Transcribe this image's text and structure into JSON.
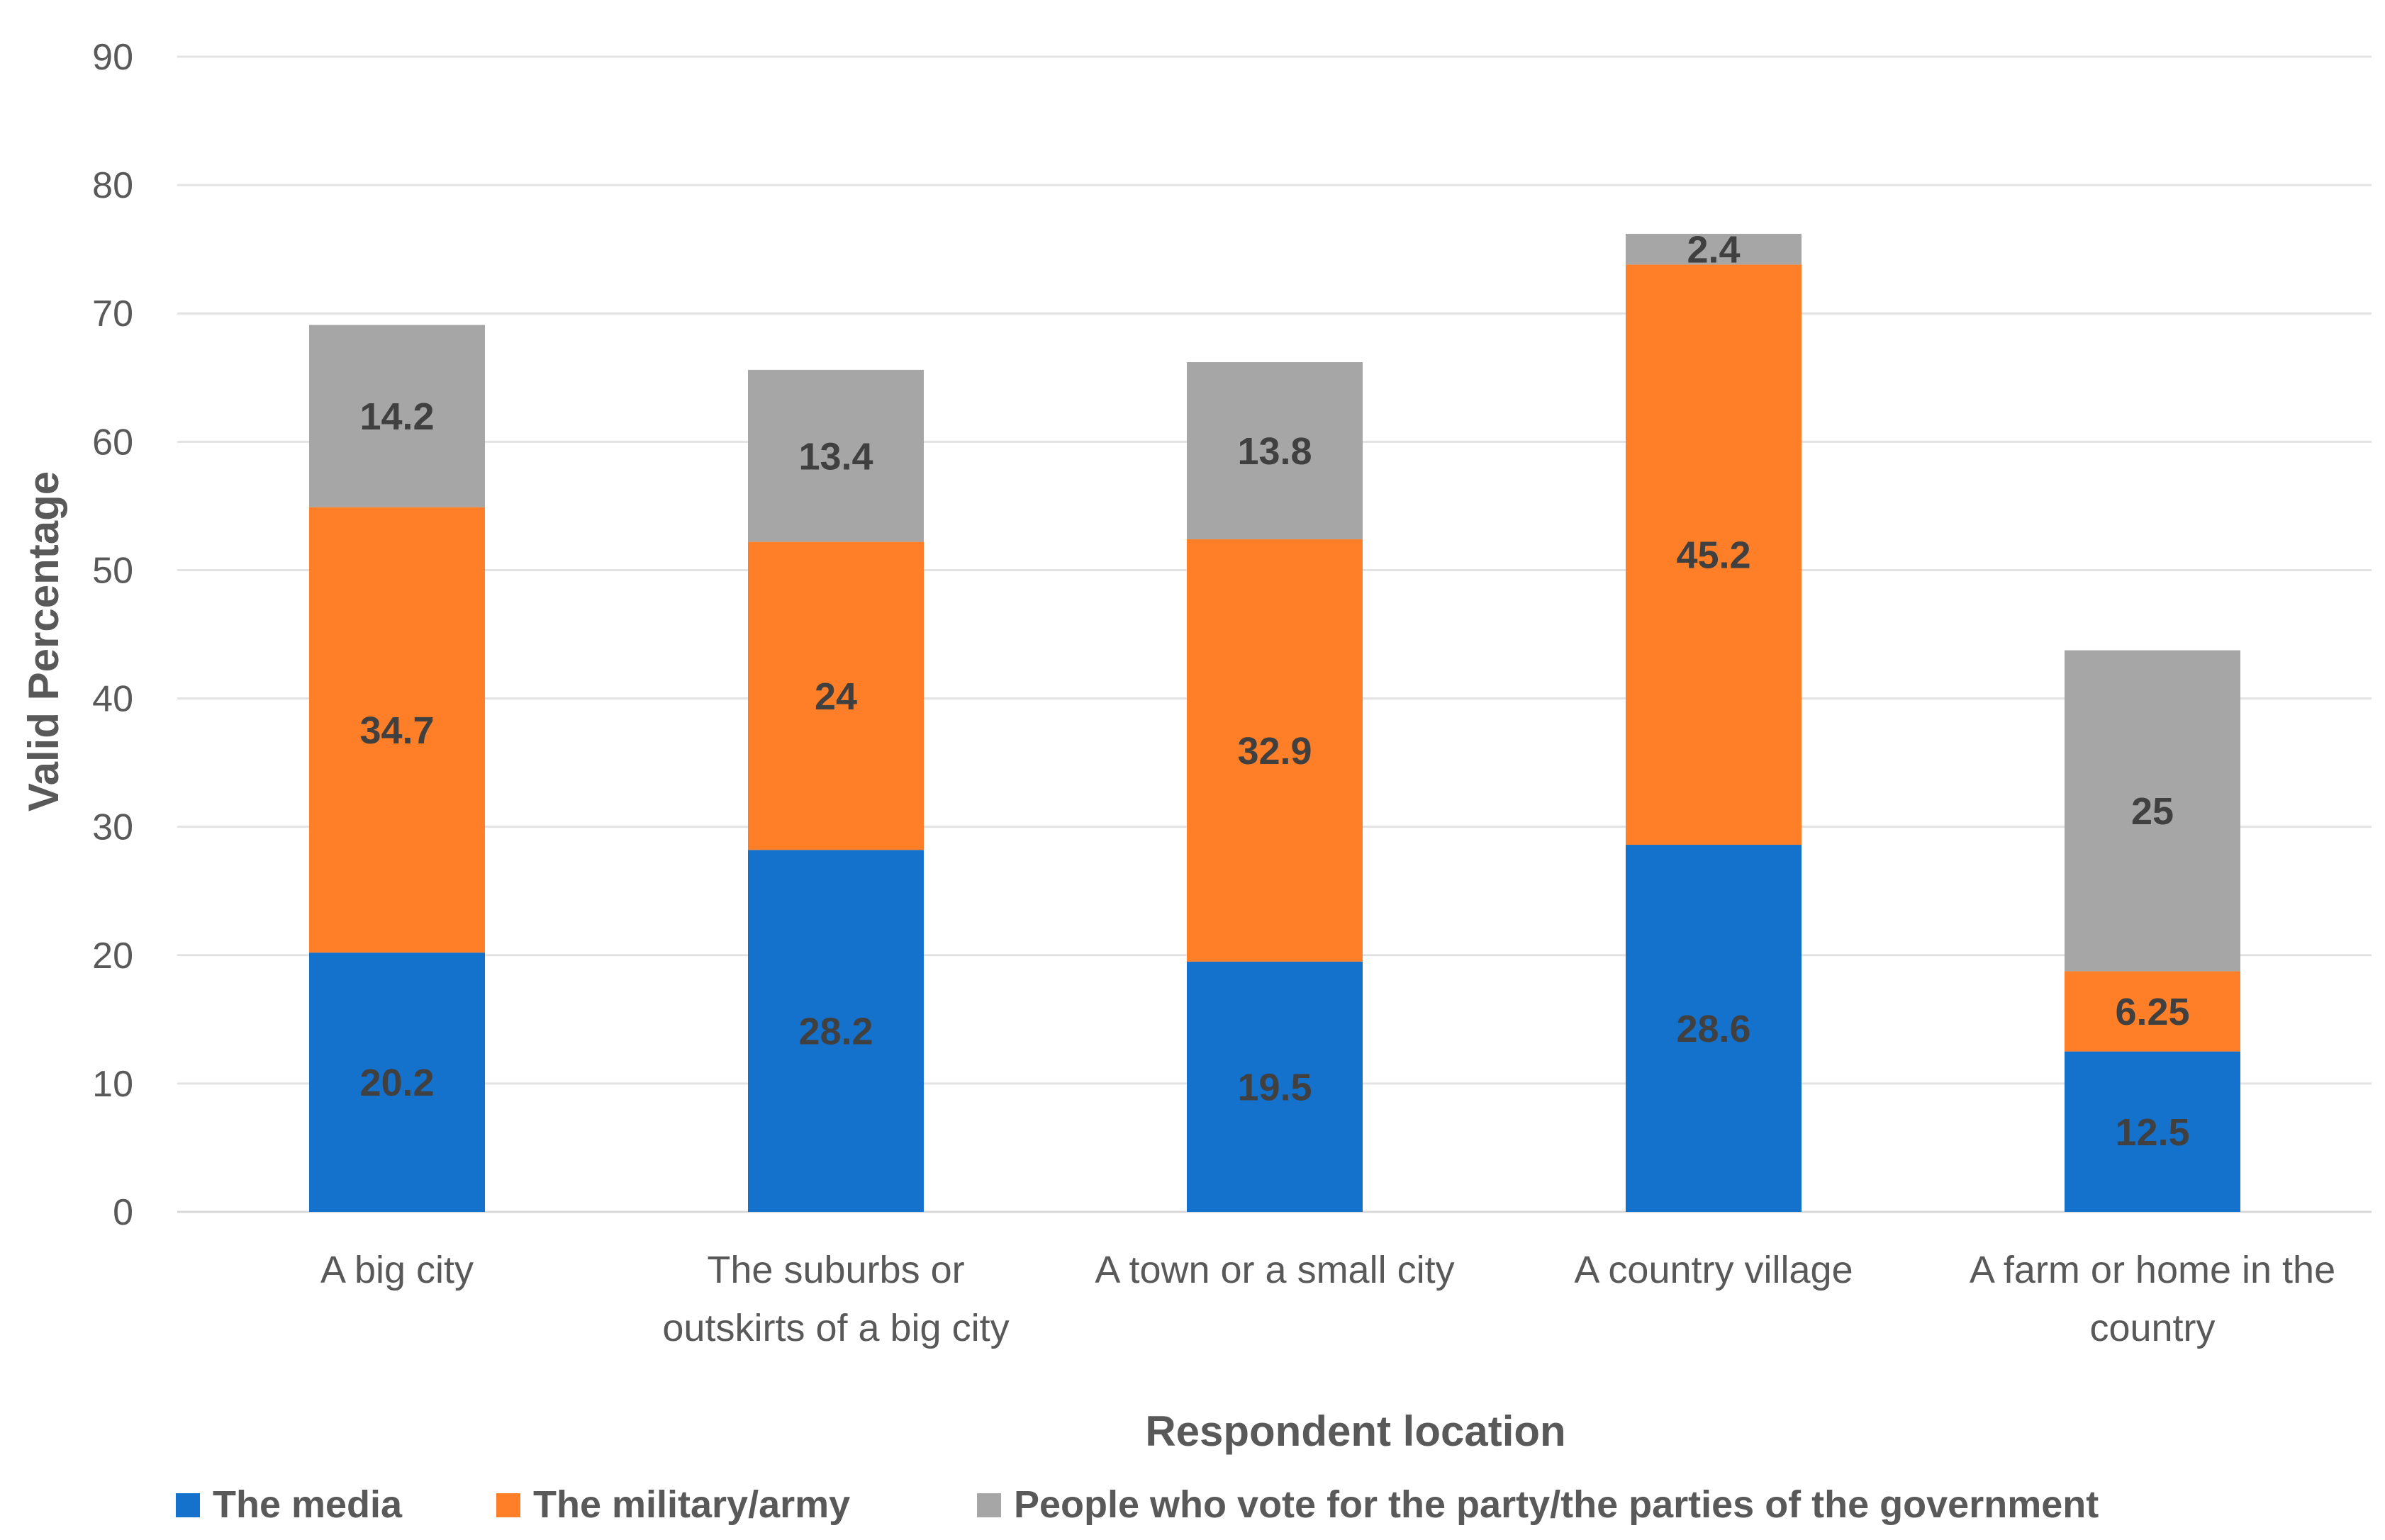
{
  "chart_data": {
    "type": "bar",
    "stacked": true,
    "categories": [
      [
        "A big city"
      ],
      [
        "The suburbs or",
        "outskirts of a big city"
      ],
      [
        "A town or a small city"
      ],
      [
        "A country village"
      ],
      [
        "A farm or home in the",
        "country"
      ]
    ],
    "series": [
      {
        "name": "The media",
        "color": "#1572CC",
        "values": [
          20.2,
          28.2,
          19.5,
          28.6,
          12.5
        ],
        "labels": [
          "20.2",
          "28.2",
          "19.5",
          "28.6",
          "12.5"
        ]
      },
      {
        "name": "The military/army",
        "color": "#FE7F27",
        "values": [
          34.7,
          24,
          32.9,
          45.2,
          6.25
        ],
        "labels": [
          "34.7",
          "24",
          "32.9",
          "45.2",
          "6.25"
        ]
      },
      {
        "name": "People who vote for the party/the parties of the government",
        "color": "#A6A6A6",
        "values": [
          14.2,
          13.4,
          13.8,
          2.4,
          25
        ],
        "labels": [
          "14.2",
          "13.4",
          "13.8",
          "2.4",
          "25"
        ]
      }
    ],
    "xlabel": "Respondent location",
    "ylabel": "Valid Percentage",
    "ylim": [
      0,
      90
    ],
    "yticks": [
      0,
      10,
      20,
      30,
      40,
      50,
      60,
      70,
      80,
      90
    ],
    "grid": true,
    "legend": "bottom"
  }
}
